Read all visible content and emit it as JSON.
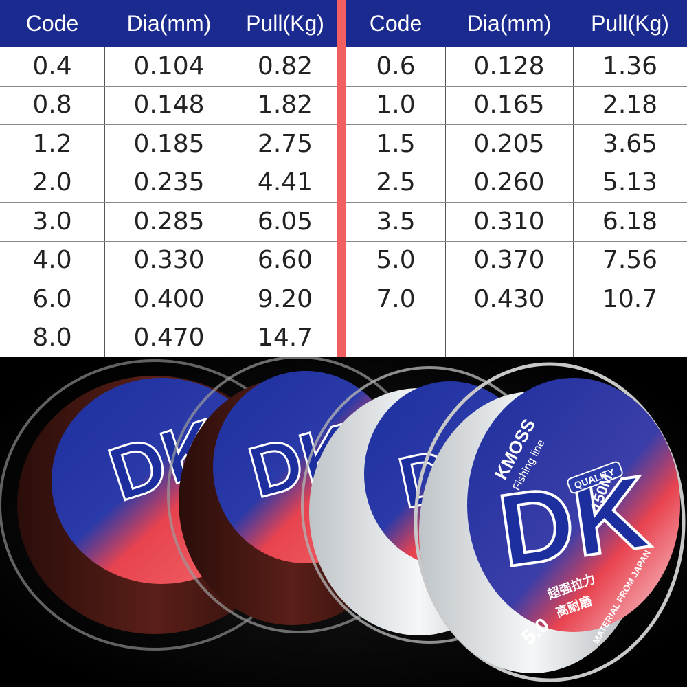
{
  "table": {
    "headers": [
      "Code",
      "Dia(mm)",
      "Pull(Kg)"
    ],
    "left_rows": [
      [
        "0.4",
        "0.104",
        "0.82"
      ],
      [
        "0.8",
        "0.148",
        "1.82"
      ],
      [
        "1.2",
        "0.185",
        "2.75"
      ],
      [
        "2.0",
        "0.235",
        "4.41"
      ],
      [
        "3.0",
        "0.285",
        "6.05"
      ],
      [
        "4.0",
        "0.330",
        "6.60"
      ],
      [
        "6.0",
        "0.400",
        "9.20"
      ],
      [
        "8.0",
        "0.470",
        "14.7"
      ]
    ],
    "right_rows": [
      [
        "0.6",
        "0.128",
        "1.36"
      ],
      [
        "1.0",
        "0.165",
        "2.18"
      ],
      [
        "1.5",
        "0.205",
        "3.65"
      ],
      [
        "2.5",
        "0.260",
        "5.13"
      ],
      [
        "3.5",
        "0.310",
        "6.18"
      ],
      [
        "5.0",
        "0.370",
        "7.56"
      ],
      [
        "7.0",
        "0.430",
        "10.7"
      ],
      [
        "",
        "",
        ""
      ]
    ]
  },
  "product": {
    "brand": "KMOSS",
    "subtitle": "Fishing line",
    "logo": "DK",
    "quality": "QUALITY",
    "length": "150M",
    "chinese_1": "超强拉力",
    "chinese_2": "高耐磨",
    "spool_code": "5.0",
    "material": "MATERIAL FROM JAPAN"
  },
  "colors": {
    "header_bg": "#1a2a8e",
    "divider": "#f25f60",
    "label_blue": "#1d2f9e",
    "label_red": "#e8434f"
  }
}
